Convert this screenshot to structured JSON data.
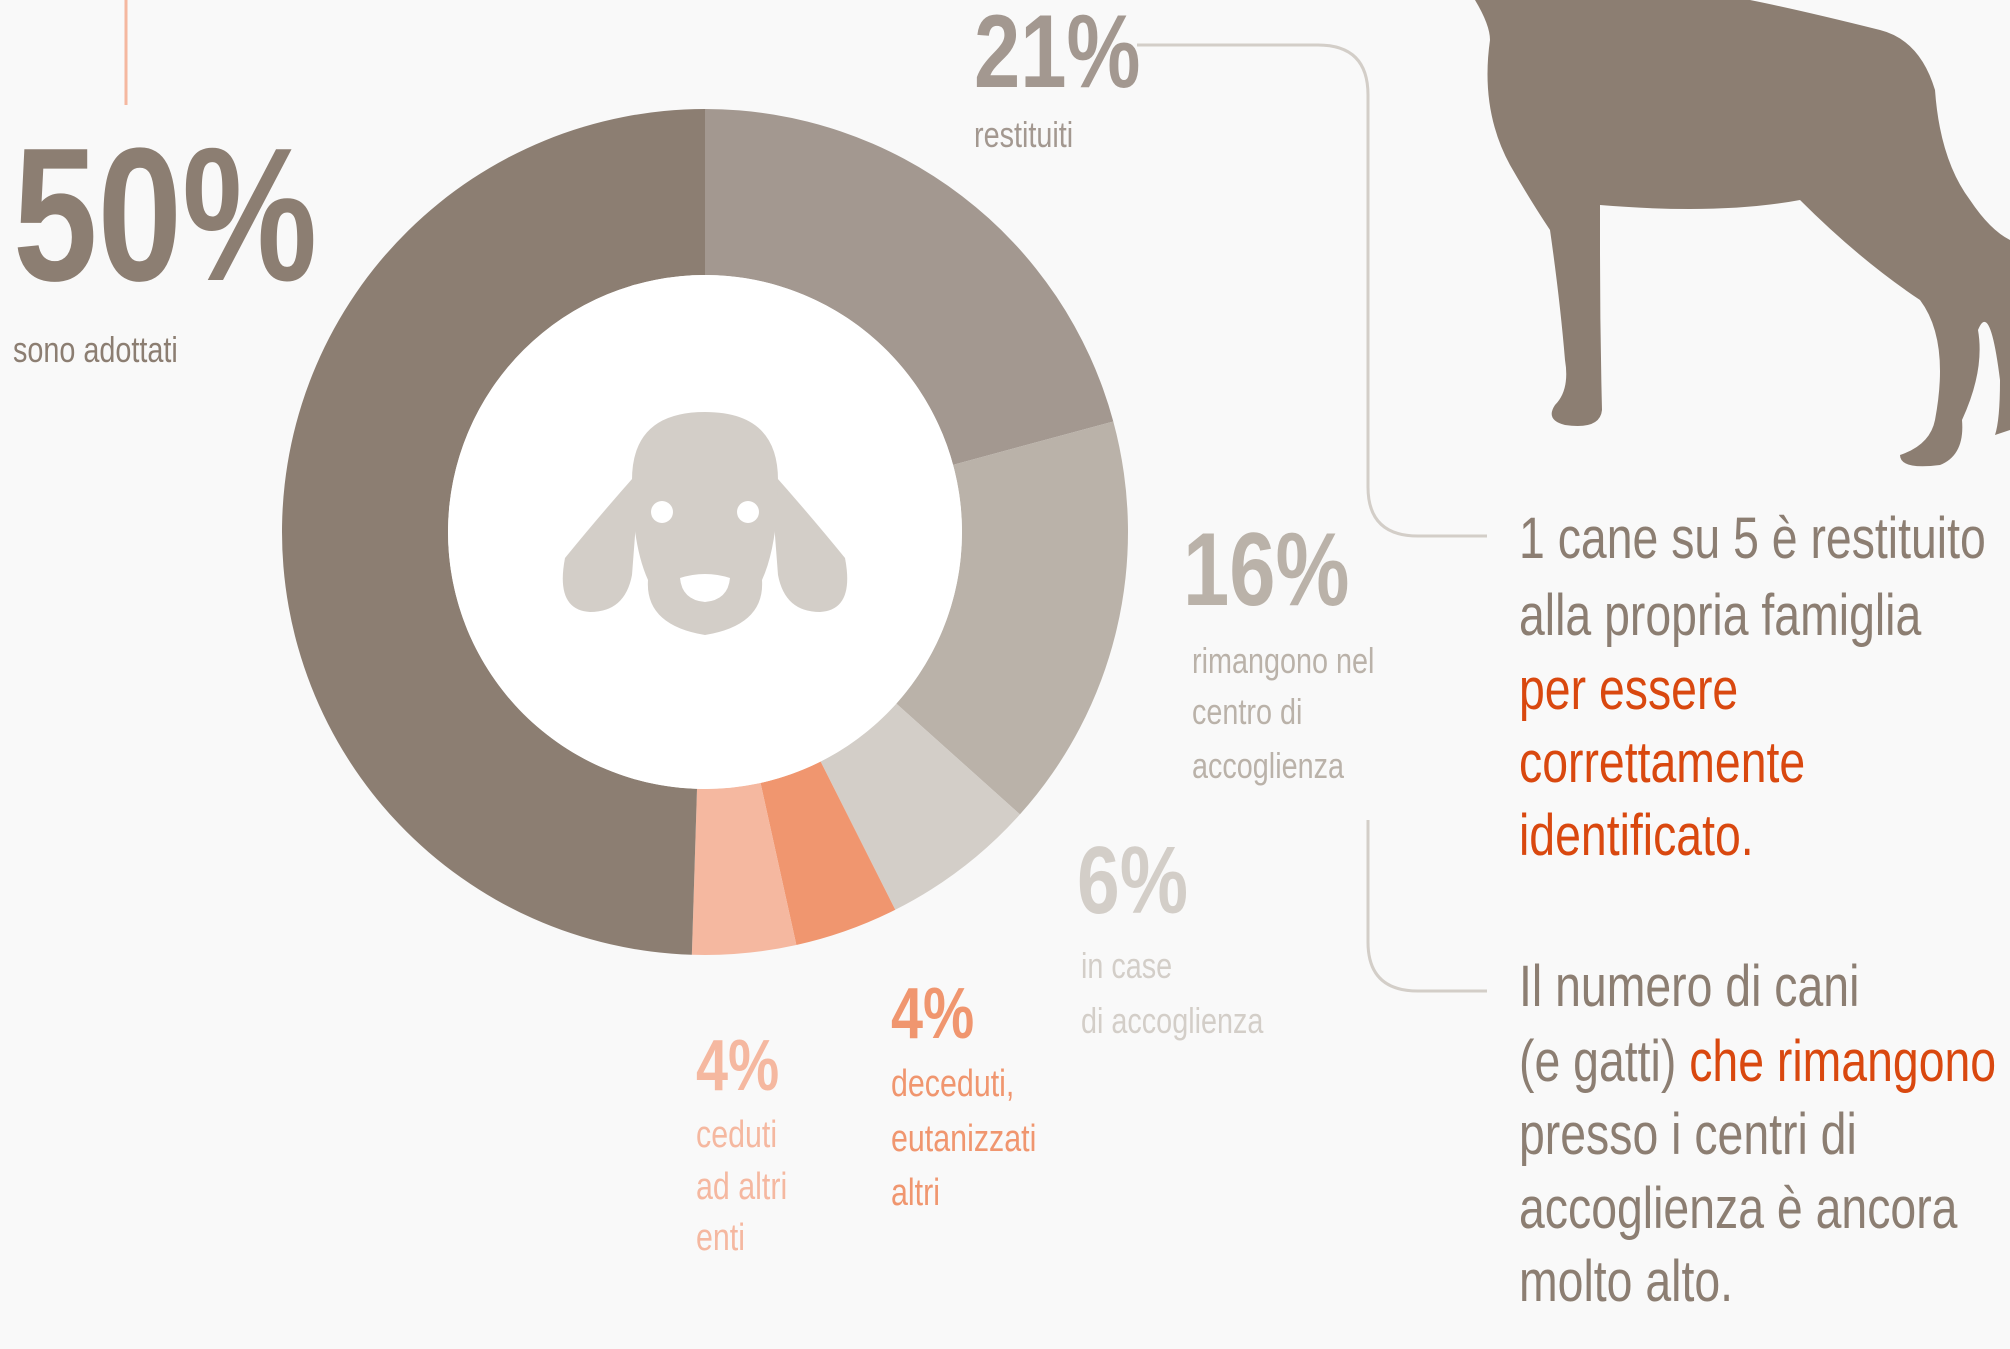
{
  "chart_data": {
    "type": "donut",
    "categories": [
      [
        "restituiti"
      ],
      [
        "rimangono nel",
        "centro di",
        "accoglienza"
      ],
      [
        "in case",
        "di accoglienza"
      ],
      [
        "deceduti,",
        "eutanizzati",
        "altri"
      ],
      [
        "ceduti",
        "ad altri",
        "enti"
      ],
      [
        "sono adottati"
      ]
    ],
    "values": [
      21,
      16,
      6,
      4,
      4,
      50
    ],
    "value_labels": [
      "21%",
      "16%",
      "6%",
      "4%",
      "4%",
      "50%"
    ],
    "colors": [
      "#a39890",
      "#bab2a9",
      "#d3cec8",
      "#f0966f",
      "#f5b8a0",
      "#8c7e72"
    ]
  },
  "annotations": [
    {
      "color": "#8c7e72",
      "lines": [
        [
          "1 cane su 5 è restituito"
        ],
        [
          "alla propria famiglia"
        ],
        [
          {
            "text": "per essere",
            "color": "#d9480f"
          }
        ],
        [
          {
            "text": "correttamente",
            "color": "#d9480f"
          }
        ],
        [
          {
            "text": "identificato.",
            "color": "#d9480f"
          }
        ]
      ]
    },
    {
      "color": "#8c7e72",
      "lines": [
        [
          "Il numero di cani"
        ],
        [
          "(e gatti) ",
          {
            "text": "che rimangono",
            "color": "#d9480f"
          }
        ],
        [
          "presso i centri di"
        ],
        [
          "accoglienza è ancora"
        ],
        [
          "molto alto."
        ]
      ]
    }
  ]
}
